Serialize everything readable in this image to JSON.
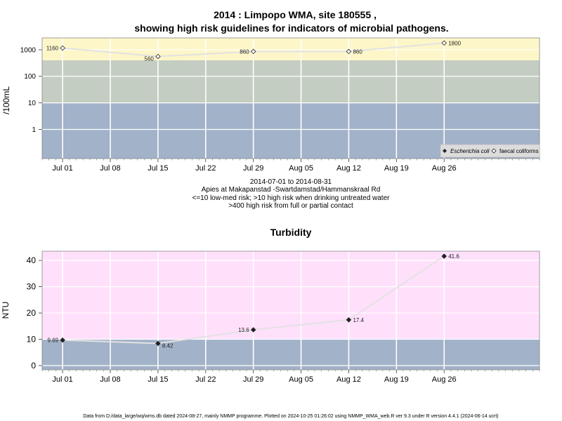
{
  "top": {
    "title_line1": "2014 : Limpopo WMA, site 180555 ,",
    "title_line2": "showing high risk guidelines for indicators of microbial pathogens.",
    "ylabel": "/100mL",
    "caption": [
      "2014-07-01 to 2014-08-31",
      "Apies at Makapanstad -Swartdamstad/Hammanskraal Rd",
      "<=10 low-med risk; >10 high risk when drinking untreated water",
      ">400 high risk from full or partial contact"
    ],
    "legend": {
      "ecoli": "Escherichia coli",
      "faecal": "faecal coliforms"
    }
  },
  "bottom": {
    "title": "Turbidity",
    "ylabel": "NTU"
  },
  "x_ticks": [
    "Jul 01",
    "Jul 08",
    "Jul 15",
    "Jul 22",
    "Jul 29",
    "Aug 05",
    "Aug 12",
    "Aug 19",
    "Aug 26"
  ],
  "footer": "Data from D:/data_large/wq/wms.db dated 2024-08-27, mainly NMMP programme. Plotted on 2024-10-25 01:26:02 using NMMP_WMA_web.R ver 9.3 under R version 4.4.1 (2024-06-14 ucrt)",
  "colors": {
    "yellow_band": "#fdf6c8",
    "gray_band": "#c4cdc2",
    "blue_band": "#a1b2c9",
    "pink_band": "#ffe0fb",
    "line": "#e2e2e2"
  },
  "chart_data": [
    {
      "type": "line",
      "title": "2014 : Limpopo WMA, site 180555 , showing high risk guidelines for indicators of microbial pathogens.",
      "ylabel": "/100mL",
      "y_scale": "log",
      "y_ticks": [
        "1",
        "10",
        "100",
        "1000"
      ],
      "ylim": [
        0.08,
        2800
      ],
      "xlim": [
        "2014-06-28",
        "2014-09-09"
      ],
      "bands": [
        {
          "from": 0.08,
          "to": 10,
          "color": "#a1b2c9"
        },
        {
          "from": 10,
          "to": 400,
          "color": "#c4cdc2"
        },
        {
          "from": 400,
          "to": 2800,
          "color": "#fdf6c8"
        }
      ],
      "series": [
        {
          "name": "faecal coliforms",
          "points": [
            {
              "x": "2014-07-01",
              "y": 1160,
              "label": "1160"
            },
            {
              "x": "2014-07-15",
              "y": 560,
              "label": "560"
            },
            {
              "x": "2014-07-29",
              "y": 860,
              "label": "860"
            },
            {
              "x": "2014-08-12",
              "y": 860,
              "label": "860"
            },
            {
              "x": "2014-08-26",
              "y": 1800,
              "label": "1800"
            }
          ]
        }
      ],
      "legend": [
        "Escherichia coli",
        "faecal coliforms"
      ],
      "legend_position": "bottom-right",
      "grid": true
    },
    {
      "type": "line",
      "title": "Turbidity",
      "ylabel": "NTU",
      "y_ticks": [
        0,
        10,
        20,
        30,
        40
      ],
      "ylim": [
        -1.6,
        43.5
      ],
      "xlim": [
        "2014-06-28",
        "2014-09-09"
      ],
      "bands": [
        {
          "from": -1.6,
          "to": 10,
          "color": "#a1b2c9"
        },
        {
          "from": 10,
          "to": 43.5,
          "color": "#ffe0fb"
        }
      ],
      "series": [
        {
          "points": [
            {
              "x": "2014-07-01",
              "y": 9.69,
              "label": "9.69"
            },
            {
              "x": "2014-07-15",
              "y": 8.42,
              "label": "8.42"
            },
            {
              "x": "2014-07-29",
              "y": 13.6,
              "label": "13.6"
            },
            {
              "x": "2014-08-12",
              "y": 17.4,
              "label": "17.4"
            },
            {
              "x": "2014-08-26",
              "y": 41.6,
              "label": "41.6"
            }
          ]
        }
      ],
      "grid": true
    }
  ]
}
